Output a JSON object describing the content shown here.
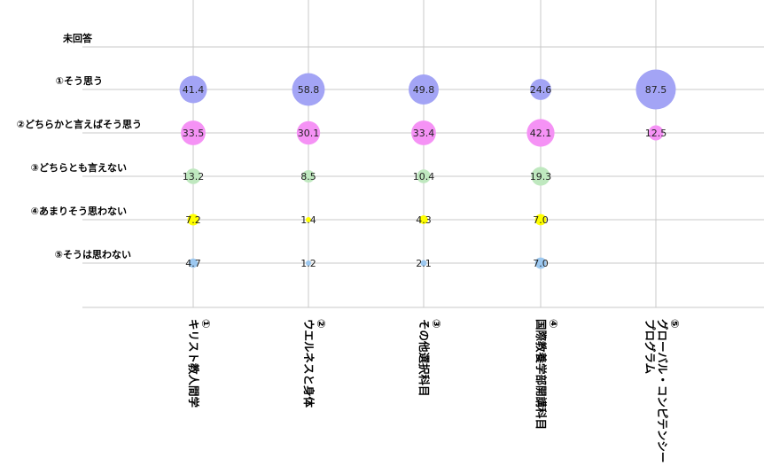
{
  "chart_data": {
    "type": "bubble",
    "title": "",
    "rows": [
      "未回答",
      "①そう思う",
      "②どちらかと言えばそう思う",
      "③どちらとも言えない",
      "④あまりそう思わない",
      "⑤そうは思わない"
    ],
    "categories": [
      [
        "①",
        "キリスト教人間学"
      ],
      [
        "②",
        "ウエルネスと身体"
      ],
      [
        "③",
        "その他選択科目"
      ],
      [
        "④",
        "国際教養学部開講科目"
      ],
      [
        "⑤",
        "グローバル・コンピテンシー・",
        "プログラム"
      ]
    ],
    "series": [
      {
        "row": "①そう思う",
        "color": "#a3a4f5",
        "values": [
          41.4,
          58.8,
          49.8,
          24.6,
          87.5
        ]
      },
      {
        "row": "②どちらかと言えばそう思う",
        "color": "#f592f5",
        "values": [
          33.5,
          30.1,
          33.4,
          42.1,
          12.5
        ]
      },
      {
        "row": "③どちらとも言えない",
        "color": "#bfe8bf",
        "values": [
          13.2,
          8.5,
          10.4,
          19.3,
          null
        ]
      },
      {
        "row": "④あまりそう思わない",
        "color": "#ffff00",
        "values": [
          7.2,
          1.4,
          4.3,
          7.0,
          null
        ]
      },
      {
        "row": "⑤そうは思わない",
        "color": "#9cc8f0",
        "values": [
          4.7,
          1.2,
          2.1,
          7.0,
          null
        ]
      }
    ],
    "grid": true
  }
}
